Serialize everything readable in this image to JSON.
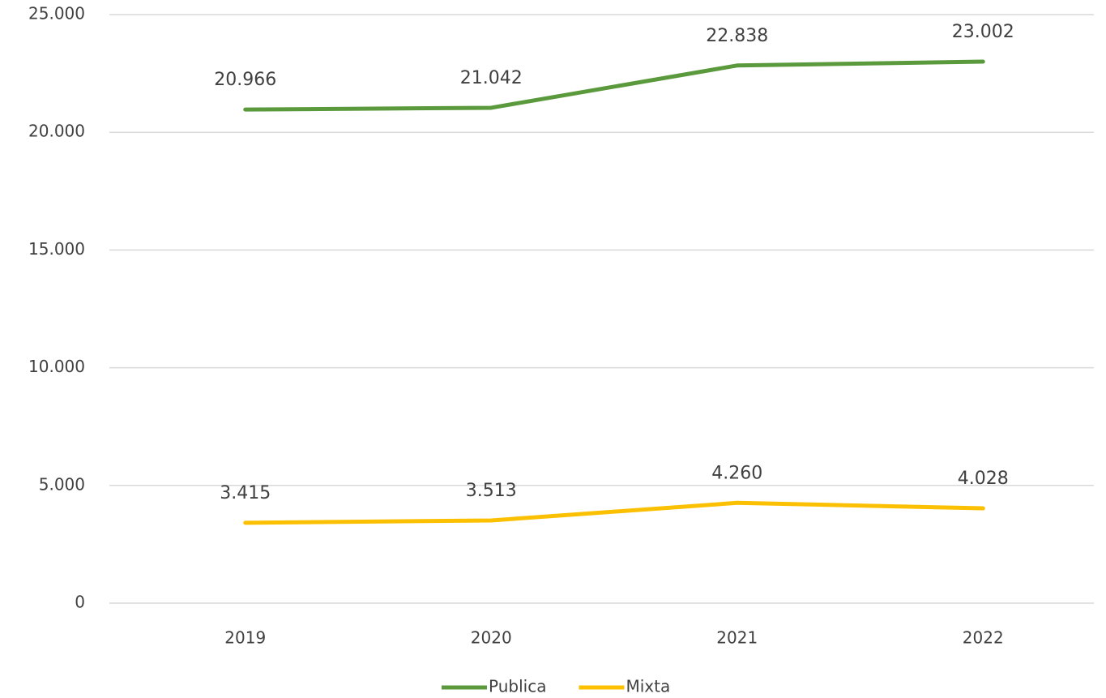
{
  "chart_data": {
    "type": "line",
    "categories": [
      "2019",
      "2020",
      "2021",
      "2022"
    ],
    "series": [
      {
        "name": "Publica",
        "color": "#5b9a3c",
        "values": [
          20966,
          21042,
          22838,
          23002
        ],
        "value_labels": [
          "20.966",
          "21.042",
          "22.838",
          "23.002"
        ]
      },
      {
        "name": "Mixta",
        "color": "#fcc003",
        "values": [
          3415,
          3513,
          4260,
          4028
        ],
        "value_labels": [
          "3.415",
          "3.513",
          "4.260",
          "4.028"
        ]
      }
    ],
    "ylim": [
      0,
      25000
    ],
    "yticks": [
      0,
      {
        "value": 5000,
        "label": "5.000"
      },
      {
        "value": 10000,
        "label": "10.000"
      },
      {
        "value": 15000,
        "label": "15.000"
      },
      {
        "value": 20000,
        "label": "20.000"
      },
      {
        "value": 25000,
        "label": "25.000"
      }
    ],
    "grid": true,
    "legend": "bottom"
  }
}
